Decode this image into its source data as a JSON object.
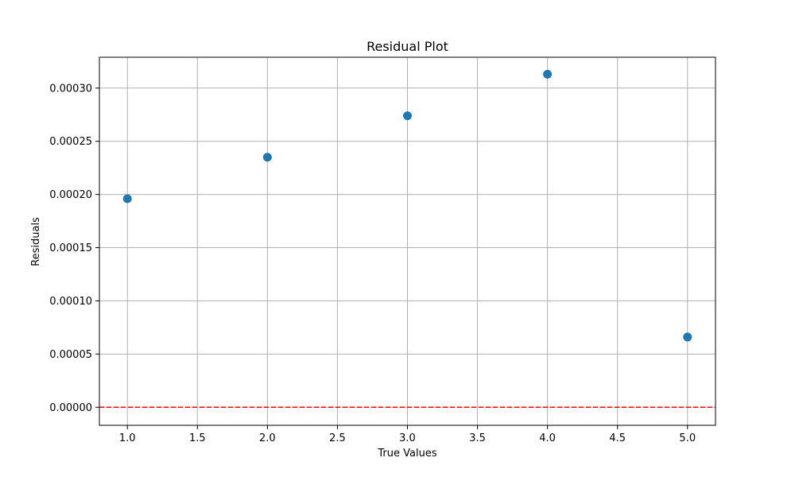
{
  "chart_data": {
    "type": "scatter",
    "title": "Residual Plot",
    "xlabel": "True Values",
    "ylabel": "Residuals",
    "xlim": [
      0.8,
      5.2
    ],
    "ylim": [
      -1.7e-05,
      0.000329
    ],
    "xticks": [
      1.0,
      1.5,
      2.0,
      2.5,
      3.0,
      3.5,
      4.0,
      4.5,
      5.0
    ],
    "xtick_labels": [
      "1.0",
      "1.5",
      "2.0",
      "2.5",
      "3.0",
      "3.5",
      "4.0",
      "4.5",
      "5.0"
    ],
    "yticks": [
      0.0,
      5e-05,
      0.0001,
      0.00015,
      0.0002,
      0.00025,
      0.0003
    ],
    "ytick_labels": [
      "0.00000",
      "0.00005",
      "0.00010",
      "0.00015",
      "0.00020",
      "0.00025",
      "0.00030"
    ],
    "grid": true,
    "series": [
      {
        "x": [
          1.0,
          2.0,
          3.0,
          4.0,
          5.0
        ],
        "y": [
          0.000196,
          0.000235,
          0.000274,
          0.000313,
          6.6e-05
        ],
        "color": "#1f77b4"
      }
    ],
    "reference_line": {
      "y": 0.0,
      "style": "dashed",
      "color": "#ff0000"
    }
  }
}
